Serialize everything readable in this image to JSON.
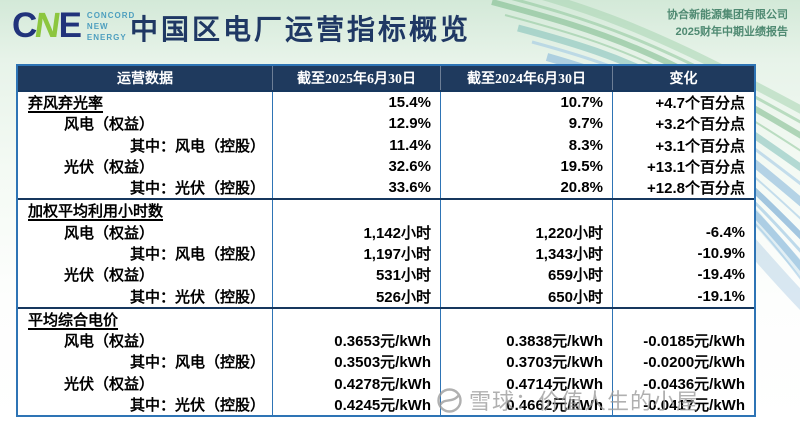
{
  "logo": {
    "c": "C",
    "n": "N",
    "e": "E",
    "tagline": [
      "CONCORD",
      "NEW",
      "ENERGY"
    ]
  },
  "header": {
    "title": "中国区电厂运营指标概览",
    "company_name": "协合新能源集团有限公司",
    "report_name": "2025财年中期业绩报告"
  },
  "table": {
    "columns": [
      "运营数据",
      "截至2025年6月30日",
      "截至2024年6月30日",
      "变化"
    ],
    "sections": [
      {
        "rows": [
          {
            "label": "弃风弃光率",
            "indent": 0,
            "section_header": true,
            "v2025": "15.4%",
            "v2024": "10.7%",
            "change": "+4.7个百分点"
          },
          {
            "label": "风电（权益）",
            "indent": 1,
            "section_header": false,
            "v2025": "12.9%",
            "v2024": "9.7%",
            "change": "+3.2个百分点"
          },
          {
            "label": "其中：风电（控股）",
            "indent": 2,
            "section_header": false,
            "v2025": "11.4%",
            "v2024": "8.3%",
            "change": "+3.1个百分点"
          },
          {
            "label": "光伏（权益）",
            "indent": 1,
            "section_header": false,
            "v2025": "32.6%",
            "v2024": "19.5%",
            "change": "+13.1个百分点"
          },
          {
            "label": "其中：光伏（控股）",
            "indent": 2,
            "section_header": false,
            "v2025": "33.6%",
            "v2024": "20.8%",
            "change": "+12.8个百分点"
          }
        ]
      },
      {
        "rows": [
          {
            "label": "加权平均利用小时数",
            "indent": 0,
            "section_header": true,
            "v2025": "",
            "v2024": "",
            "change": ""
          },
          {
            "label": "风电（权益）",
            "indent": 1,
            "section_header": false,
            "v2025": "1,142小时",
            "v2024": "1,220小时",
            "change": "-6.4%"
          },
          {
            "label": "其中：风电（控股）",
            "indent": 2,
            "section_header": false,
            "v2025": "1,197小时",
            "v2024": "1,343小时",
            "change": "-10.9%"
          },
          {
            "label": "光伏（权益）",
            "indent": 1,
            "section_header": false,
            "v2025": "531小时",
            "v2024": "659小时",
            "change": "-19.4%"
          },
          {
            "label": "其中：光伏（控股）",
            "indent": 2,
            "section_header": false,
            "v2025": "526小时",
            "v2024": "650小时",
            "change": "-19.1%"
          }
        ]
      },
      {
        "rows": [
          {
            "label": "平均综合电价",
            "indent": 0,
            "section_header": true,
            "v2025": "",
            "v2024": "",
            "change": ""
          },
          {
            "label": "风电（权益）",
            "indent": 1,
            "section_header": false,
            "v2025": "0.3653元/kWh",
            "v2024": "0.3838元/kWh",
            "change": "-0.0185元/kWh"
          },
          {
            "label": "其中：风电（控股）",
            "indent": 2,
            "section_header": false,
            "v2025": "0.3503元/kWh",
            "v2024": "0.3703元/kWh",
            "change": "-0.0200元/kWh"
          },
          {
            "label": "光伏（权益）",
            "indent": 1,
            "section_header": false,
            "v2025": "0.4278元/kWh",
            "v2024": "0.4714元/kWh",
            "change": "-0.0436元/kWh"
          },
          {
            "label": "其中：光伏（控股）",
            "indent": 2,
            "section_header": false,
            "v2025": "0.4245元/kWh",
            "v2024": "0.4662元/kWh",
            "change": "-0.0417元/kWh"
          }
        ]
      }
    ]
  },
  "watermark": {
    "text": "雪球：价值人生的小屋",
    "icon": "snowball-icon"
  },
  "colors": {
    "title_navy": "#1F3864",
    "header_bg": "#1F3A5E",
    "table_border": "#2E74B5",
    "section_divider": "#16375E",
    "logo_navy": "#21337B",
    "logo_green": "#8CC63F",
    "logo_tagline": "#4E9FBF",
    "company_text": "#4F8A72",
    "watermark_gray": "#9A9A9A",
    "bg_green_top": "#D3E9D8"
  }
}
